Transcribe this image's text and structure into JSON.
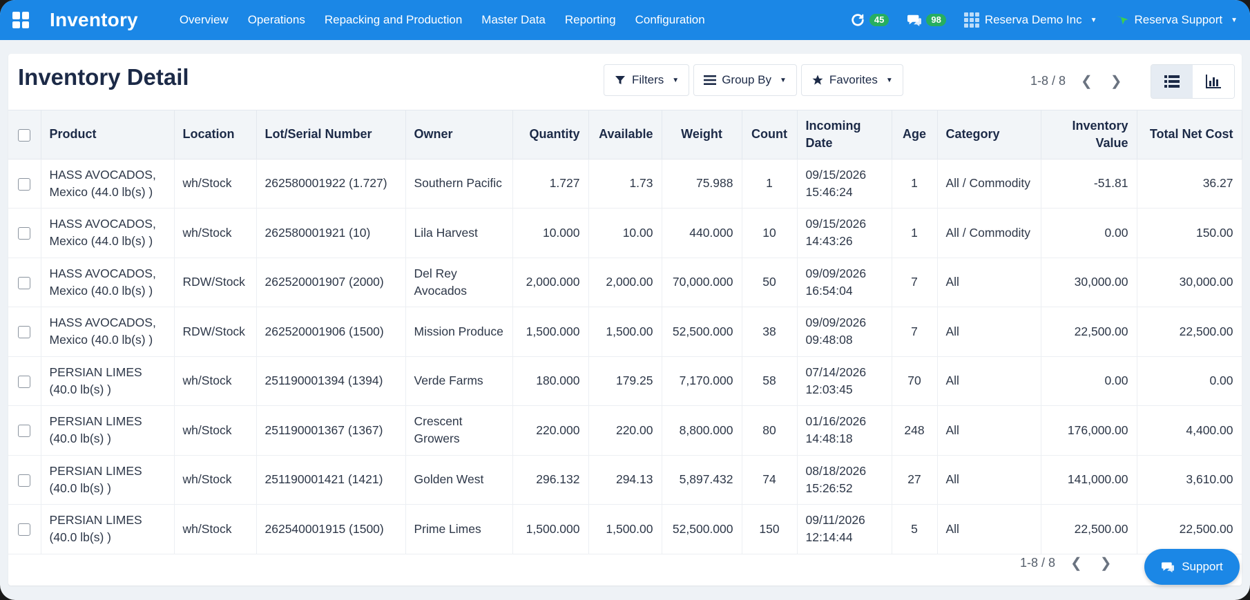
{
  "nav": {
    "brand": "Inventory",
    "menu": [
      "Overview",
      "Operations",
      "Repacking and Production",
      "Master Data",
      "Reporting",
      "Configuration"
    ],
    "activity_count": "45",
    "messages_count": "98",
    "company": "Reserva Demo Inc",
    "user": "Reserva Support"
  },
  "page": {
    "title": "Inventory Detail",
    "filters_label": "Filters",
    "groupby_label": "Group By",
    "favorites_label": "Favorites",
    "pager_text": "1-8 / 8"
  },
  "table": {
    "columns": [
      "Product",
      "Location",
      "Lot/Serial Number",
      "Owner",
      "Quantity",
      "Available",
      "Weight",
      "Count",
      "Incoming Date",
      "Age",
      "Category",
      "Inventory Value",
      "Total Net Cost"
    ],
    "rows": [
      {
        "product": "HASS AVOCADOS, Mexico (44.0 lb(s) )",
        "location": "wh/Stock",
        "lot": "262580001922 (1.727)",
        "owner": "Southern Pacific",
        "quantity": "1.727",
        "available": "1.73",
        "weight": "75.988",
        "count": "1",
        "date": "09/15/2026 15:46:24",
        "age": "1",
        "category": "All / Commodity",
        "inv_value": "-51.81",
        "net_cost": "36.27"
      },
      {
        "product": "HASS AVOCADOS, Mexico (44.0 lb(s) )",
        "location": "wh/Stock",
        "lot": "262580001921 (10)",
        "owner": "Lila Harvest",
        "quantity": "10.000",
        "available": "10.00",
        "weight": "440.000",
        "count": "10",
        "date": "09/15/2026 14:43:26",
        "age": "1",
        "category": "All / Commodity",
        "inv_value": "0.00",
        "net_cost": "150.00"
      },
      {
        "product": "HASS AVOCADOS, Mexico (40.0 lb(s) )",
        "location": "RDW/Stock",
        "lot": "262520001907 (2000)",
        "owner": "Del Rey Avocados",
        "quantity": "2,000.000",
        "available": "2,000.00",
        "weight": "70,000.000",
        "count": "50",
        "date": "09/09/2026 16:54:04",
        "age": "7",
        "category": "All",
        "inv_value": "30,000.00",
        "net_cost": "30,000.00"
      },
      {
        "product": "HASS AVOCADOS, Mexico (40.0 lb(s) )",
        "location": "RDW/Stock",
        "lot": "262520001906 (1500)",
        "owner": "Mission Produce",
        "quantity": "1,500.000",
        "available": "1,500.00",
        "weight": "52,500.000",
        "count": "38",
        "date": "09/09/2026 09:48:08",
        "age": "7",
        "category": "All",
        "inv_value": "22,500.00",
        "net_cost": "22,500.00"
      },
      {
        "product": "PERSIAN LIMES (40.0 lb(s) )",
        "location": "wh/Stock",
        "lot": "251190001394 (1394)",
        "owner": "Verde Farms",
        "quantity": "180.000",
        "available": "179.25",
        "weight": "7,170.000",
        "count": "58",
        "date": "07/14/2026 12:03:45",
        "age": "70",
        "category": "All",
        "inv_value": "0.00",
        "net_cost": "0.00"
      },
      {
        "product": "PERSIAN LIMES (40.0 lb(s) )",
        "location": "wh/Stock",
        "lot": "251190001367 (1367)",
        "owner": "Crescent Growers",
        "quantity": "220.000",
        "available": "220.00",
        "weight": "8,800.000",
        "count": "80",
        "date": "01/16/2026 14:48:18",
        "age": "248",
        "category": "All",
        "inv_value": "176,000.00",
        "net_cost": "4,400.00"
      },
      {
        "product": "PERSIAN LIMES (40.0 lb(s) )",
        "location": "wh/Stock",
        "lot": "251190001421 (1421)",
        "owner": "Golden West",
        "quantity": "296.132",
        "available": "294.13",
        "weight": "5,897.432",
        "count": "74",
        "date": "08/18/2026 15:26:52",
        "age": "27",
        "category": "All",
        "inv_value": "141,000.00",
        "net_cost": "3,610.00"
      },
      {
        "product": "PERSIAN LIMES (40.0 lb(s) )",
        "location": "wh/Stock",
        "lot": "262540001915 (1500)",
        "owner": "Prime Limes",
        "quantity": "1,500.000",
        "available": "1,500.00",
        "weight": "52,500.000",
        "count": "150",
        "date": "09/11/2026 12:14:44",
        "age": "5",
        "category": "All",
        "inv_value": "22,500.00",
        "net_cost": "22,500.00"
      }
    ]
  },
  "footer": {
    "pager_text": "1-8 / 8",
    "support_label": "Support"
  },
  "colors": {
    "brand_blue": "#1b87e6",
    "badge_green": "#27ae60"
  }
}
